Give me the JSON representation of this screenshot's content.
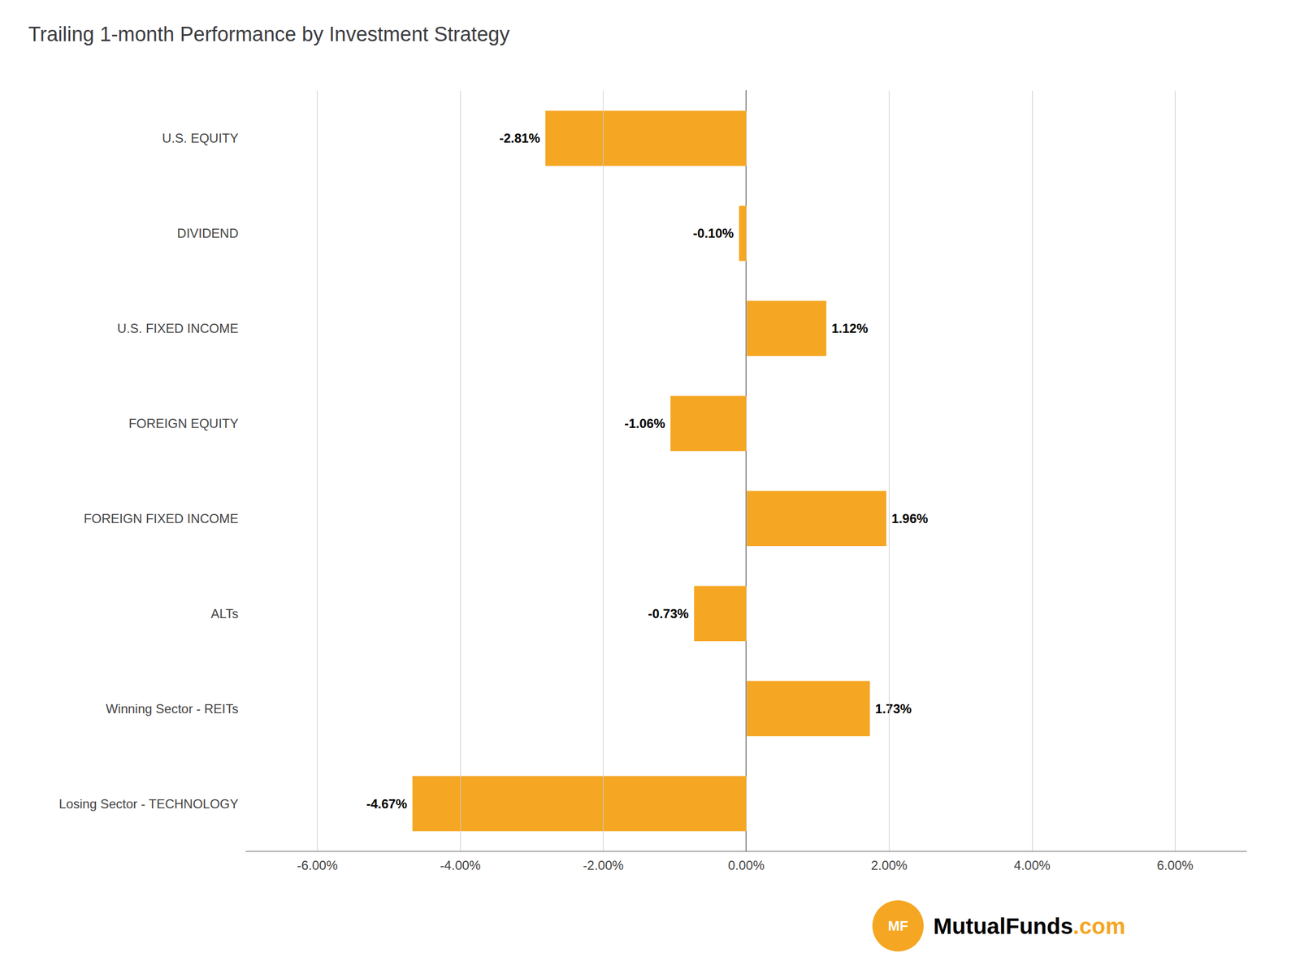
{
  "chart_data": {
    "type": "bar",
    "orientation": "horizontal",
    "title": "Trailing 1-month Performance by Investment Strategy",
    "categories": [
      "U.S. EQUITY",
      "DIVIDEND",
      "U.S. FIXED INCOME",
      "FOREIGN EQUITY",
      "FOREIGN FIXED INCOME",
      "ALTs",
      "Winning Sector - REITs",
      "Losing Sector - TECHNOLOGY"
    ],
    "values": [
      -2.81,
      -0.1,
      1.12,
      -1.06,
      1.96,
      -0.73,
      1.73,
      -4.67
    ],
    "value_labels": [
      "-2.81%",
      "-0.10%",
      "1.12%",
      "-1.06%",
      "1.96%",
      "-0.73%",
      "1.73%",
      "-4.67%"
    ],
    "data_labels": true,
    "color": "#F5A623",
    "xlim": [
      -7.0,
      7.0
    ],
    "xticks": [
      {
        "value": -6.0,
        "label": "-6.00%"
      },
      {
        "value": -4.0,
        "label": "-4.00%"
      },
      {
        "value": -2.0,
        "label": "-2.00%"
      },
      {
        "value": 0.0,
        "label": "0.00%"
      },
      {
        "value": 2.0,
        "label": "2.00%"
      },
      {
        "value": 4.0,
        "label": "4.00%"
      },
      {
        "value": 6.0,
        "label": "6.00%"
      }
    ],
    "grid": true,
    "annotations": [
      "MF",
      "MutualFunds",
      ".com"
    ]
  }
}
